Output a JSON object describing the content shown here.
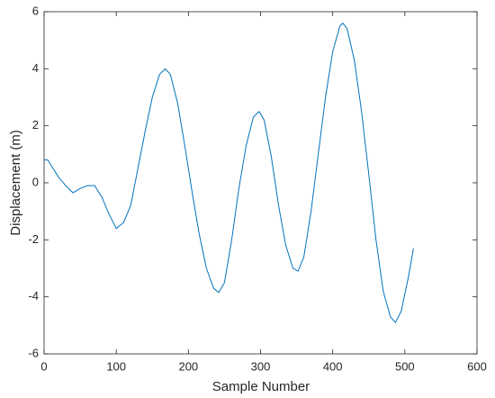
{
  "chart_data": {
    "type": "line",
    "xlabel": "Sample Number",
    "ylabel": "Displacement (m)",
    "x": [
      0,
      5,
      10,
      20,
      30,
      40,
      50,
      60,
      70,
      80,
      90,
      100,
      110,
      120,
      130,
      140,
      150,
      160,
      168,
      175,
      185,
      195,
      205,
      215,
      225,
      235,
      242,
      250,
      260,
      270,
      280,
      290,
      298,
      305,
      315,
      325,
      335,
      345,
      352,
      360,
      370,
      380,
      390,
      400,
      410,
      414,
      420,
      430,
      440,
      450,
      460,
      470,
      480,
      487,
      495,
      505,
      512
    ],
    "series": [
      {
        "color": "#0072bd",
        "values": [
          0.8,
          0.8,
          0.6,
          0.2,
          -0.1,
          -0.35,
          -0.2,
          -0.1,
          -0.1,
          -0.5,
          -1.1,
          -1.6,
          -1.4,
          -0.8,
          0.5,
          1.8,
          3.0,
          3.8,
          4.0,
          3.8,
          2.8,
          1.3,
          -0.3,
          -1.8,
          -3.0,
          -3.7,
          -3.85,
          -3.5,
          -2.0,
          -0.2,
          1.3,
          2.3,
          2.5,
          2.2,
          0.9,
          -0.8,
          -2.2,
          -3.0,
          -3.1,
          -2.6,
          -1.0,
          1.0,
          3.0,
          4.6,
          5.5,
          5.6,
          5.4,
          4.3,
          2.5,
          0.3,
          -2.0,
          -3.8,
          -4.7,
          -4.9,
          -4.5,
          -3.3,
          -2.3
        ]
      }
    ],
    "xlim": [
      0,
      600
    ],
    "xticks": [
      0,
      100,
      200,
      300,
      400,
      500,
      600
    ],
    "ylim": [
      -6,
      6
    ],
    "yticks": [
      -6,
      -4,
      -2,
      0,
      2,
      4,
      6
    ]
  }
}
